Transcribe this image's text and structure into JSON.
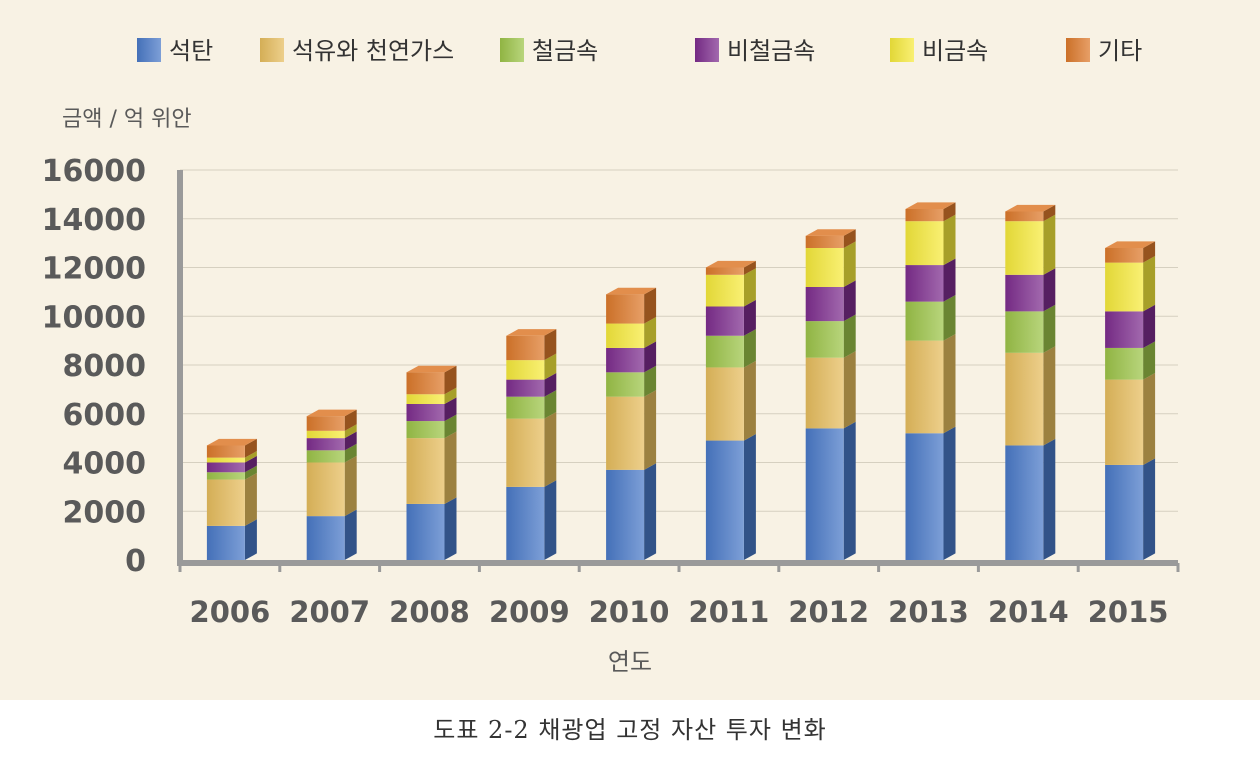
{
  "caption": "도표 2-2 채광업 고정 자산 투자 변화",
  "chart_data": {
    "type": "bar",
    "stacked": true,
    "title": "",
    "ylabel": "금액 / 억 위안",
    "xlabel": "연도",
    "ylim": [
      0,
      16000
    ],
    "yticks": [
      0,
      2000,
      4000,
      6000,
      8000,
      10000,
      12000,
      14000,
      16000
    ],
    "grid": true,
    "legend_position": "top",
    "categories": [
      "2006",
      "2007",
      "2008",
      "2009",
      "2010",
      "2011",
      "2012",
      "2013",
      "2014",
      "2015"
    ],
    "series": [
      {
        "name": "석탄",
        "color": "#4a7ac8",
        "values": [
          1400,
          1800,
          2300,
          3000,
          3700,
          4900,
          5400,
          5200,
          4700,
          3900
        ]
      },
      {
        "name": "석유와 천연가스",
        "color": "#e6bd5e",
        "values": [
          1900,
          2200,
          2700,
          2800,
          3000,
          3000,
          2900,
          3800,
          3800,
          3500
        ]
      },
      {
        "name": "철금속",
        "color": "#9cc449",
        "values": [
          300,
          500,
          700,
          900,
          1000,
          1300,
          1500,
          1600,
          1700,
          1300
        ]
      },
      {
        "name": "비철금속",
        "color": "#7e2e8e",
        "values": [
          400,
          500,
          700,
          700,
          1000,
          1200,
          1400,
          1500,
          1500,
          1500
        ]
      },
      {
        "name": "비금속",
        "color": "#f6ea3c",
        "values": [
          200,
          300,
          400,
          800,
          1000,
          1300,
          1600,
          1800,
          2200,
          2000
        ]
      },
      {
        "name": "기타",
        "color": "#dd7a2c",
        "values": [
          500,
          600,
          900,
          1000,
          1200,
          300,
          500,
          500,
          400,
          600
        ]
      }
    ]
  }
}
